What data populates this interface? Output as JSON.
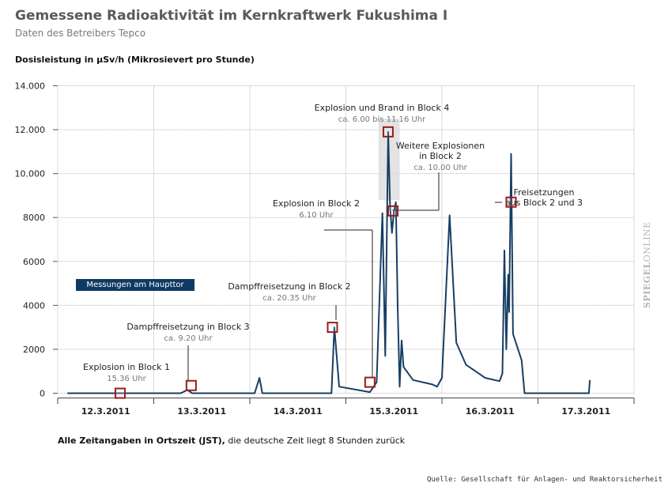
{
  "header": {
    "title": "Gemessene Radioaktivität im Kernkraftwerk Fukushima I",
    "subtitle": "Daten des Betreibers Tepco"
  },
  "colors": {
    "line": "#173e63",
    "marker": "#9b1c1c",
    "grid": "#b8b8b8",
    "highlight": "#dcdcdc",
    "badge": "#0e3a63"
  },
  "legend": {
    "label": "Messungen am Haupttor"
  },
  "footnote": {
    "bold": "Alle Zeitangaben in Ortszeit (JST),",
    "rest": " die deutsche Zeit liegt 8 Stunden zurück"
  },
  "source": "Quelle: Gesellschaft für Anlagen- und Reaktorsicherheit",
  "brand": {
    "bold": "SPIEGEL",
    "rest": "ONLINE"
  },
  "chart_data": {
    "type": "line",
    "title": "Gemessene Radioaktivität im Kernkraftwerk Fukushima I",
    "ylabel": "Dosisleistung in µSv/h (Mikrosievert pro Stunde)",
    "xlabel": "",
    "xlim": [
      0,
      6
    ],
    "ylim": [
      0,
      14000
    ],
    "ygrid": true,
    "yticks": [
      0,
      2000,
      4000,
      6000,
      8000,
      10000,
      12000,
      14000
    ],
    "ytick_labels": [
      "0",
      "2000",
      "4000",
      "6000",
      "8000",
      "10.000",
      "12.000",
      "14.000"
    ],
    "xtick_labels": [
      "12.3.2011",
      "13.3.2011",
      "14.3.2011",
      "15.3.2011",
      "16.3.2011",
      "17.3.2011"
    ],
    "x_units": "Tage seit 12.3.2011 00:00 JST",
    "series": [
      {
        "name": "Messungen am Haupttor",
        "points": [
          [
            0.1,
            0
          ],
          [
            1.28,
            0
          ],
          [
            1.35,
            150
          ],
          [
            1.4,
            0
          ],
          [
            2.05,
            0
          ],
          [
            2.1,
            700
          ],
          [
            2.13,
            0
          ],
          [
            2.85,
            0
          ],
          [
            2.88,
            3000
          ],
          [
            2.93,
            300
          ],
          [
            3.25,
            50
          ],
          [
            3.32,
            500
          ],
          [
            3.38,
            8200
          ],
          [
            3.41,
            1700
          ],
          [
            3.44,
            11900
          ],
          [
            3.46,
            8500
          ],
          [
            3.48,
            7300
          ],
          [
            3.5,
            8300
          ],
          [
            3.52,
            8700
          ],
          [
            3.54,
            3800
          ],
          [
            3.56,
            300
          ],
          [
            3.58,
            2400
          ],
          [
            3.6,
            1200
          ],
          [
            3.7,
            600
          ],
          [
            3.9,
            400
          ],
          [
            3.95,
            300
          ],
          [
            4.0,
            700
          ],
          [
            4.08,
            8100
          ],
          [
            4.15,
            2300
          ],
          [
            4.25,
            1300
          ],
          [
            4.45,
            700
          ],
          [
            4.6,
            550
          ],
          [
            4.63,
            900
          ],
          [
            4.65,
            6500
          ],
          [
            4.67,
            2000
          ],
          [
            4.69,
            5400
          ],
          [
            4.7,
            3700
          ],
          [
            4.72,
            10900
          ],
          [
            4.74,
            2700
          ],
          [
            4.83,
            1500
          ],
          [
            4.86,
            0
          ],
          [
            5.5,
            0
          ],
          [
            5.53,
            0
          ],
          [
            5.54,
            600
          ]
        ]
      }
    ],
    "annotations": [
      {
        "title": "Explosion in Block 1",
        "time": "15.36 Uhr",
        "x": 0.65,
        "y": 0
      },
      {
        "title": "Dampffreisetzung in Block 3",
        "time": "ca. 9.20 Uhr",
        "x": 1.39,
        "y": 350
      },
      {
        "title": "Dampffreisetzung in Block 2",
        "time": "ca. 20.35 Uhr",
        "x": 2.86,
        "y": 3000
      },
      {
        "title": "Explosion in Block 2",
        "time": "6.10 Uhr",
        "x": 3.25,
        "y": 500
      },
      {
        "title": "Explosion und Brand in Block 4",
        "time": "ca. 6.00 bis 11.16 Uhr",
        "x": 3.44,
        "y": 11900
      },
      {
        "title_lines": [
          "Weitere Explosionen",
          "in Block 2"
        ],
        "time": "ca. 10.00 Uhr",
        "x": 3.49,
        "y": 8300
      },
      {
        "title_lines": [
          "Freisetzungen",
          "aus Block 2 und 3"
        ],
        "time": "",
        "x": 4.72,
        "y": 8700
      }
    ],
    "highlight_range": [
      3.34,
      3.56
    ]
  }
}
